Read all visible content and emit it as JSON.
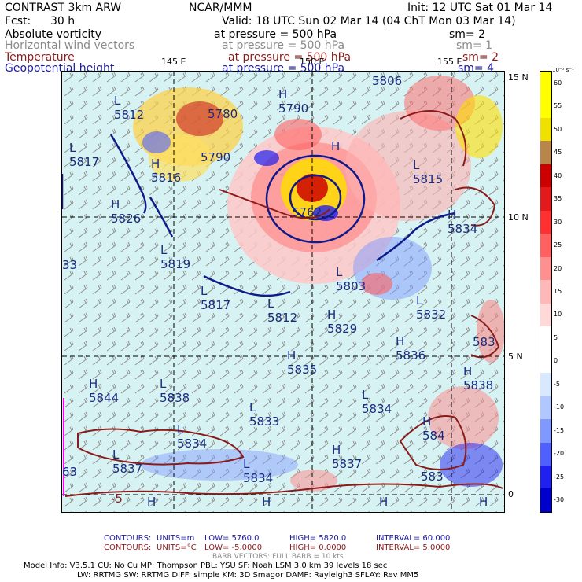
{
  "header": {
    "model": "CONTRAST  3km ARW",
    "center": "NCAR/MMM",
    "init": "Init: 12 UTC Sat 01 Mar 14",
    "fcst_label": "Fcst:",
    "fcst_value": "30 h",
    "valid": "Valid: 18 UTC Sun 02 Mar 14 (04 ChT Mon 03 Mar 14)"
  },
  "fields": [
    {
      "name": "Absolute vorticity",
      "pressure": "at pressure =  500 hPa",
      "sm": "sm= 2",
      "color": "#000000"
    },
    {
      "name": "Horizontal wind vectors",
      "pressure": "at pressure =  500 hPa",
      "sm": "sm= 1",
      "color": "#8a8a8a"
    },
    {
      "name": "Temperature",
      "pressure": "at pressure =  500 hPa",
      "sm": "sm= 2",
      "color": "#8b1a1a"
    },
    {
      "name": "Geopotential height",
      "pressure": "at pressure =  500 hPa",
      "sm": "sm= 4",
      "color": "#1a1aa0"
    }
  ],
  "map": {
    "lon_labels": [
      "145 E",
      "150 E",
      "155 E"
    ],
    "lat_labels": [
      "15 N",
      "10 N",
      "5 N",
      "0"
    ],
    "height_labels": [
      {
        "kind": "L",
        "value": "5812"
      },
      {
        "kind": "",
        "value": "5780"
      },
      {
        "kind": "H",
        "value": "5790"
      },
      {
        "kind": "",
        "value": "5806"
      },
      {
        "kind": "L",
        "value": "5817"
      },
      {
        "kind": "H",
        "value": "5816"
      },
      {
        "kind": "",
        "value": "5790"
      },
      {
        "kind": "H",
        "value": ""
      },
      {
        "kind": "",
        "value": "5762"
      },
      {
        "kind": "L",
        "value": "5815"
      },
      {
        "kind": "H",
        "value": "5826"
      },
      {
        "kind": "H",
        "value": "5834"
      },
      {
        "kind": "L",
        "value": "5819"
      },
      {
        "kind": "",
        "value": "33"
      },
      {
        "kind": "L",
        "value": "5803"
      },
      {
        "kind": "L",
        "value": "5817"
      },
      {
        "kind": "L",
        "value": "5812"
      },
      {
        "kind": "H",
        "value": "5829"
      },
      {
        "kind": "L",
        "value": "5832"
      },
      {
        "kind": "H",
        "value": "5836"
      },
      {
        "kind": "",
        "value": "583"
      },
      {
        "kind": "H",
        "value": "5835"
      },
      {
        "kind": "H",
        "value": "5844"
      },
      {
        "kind": "L",
        "value": "5838"
      },
      {
        "kind": "L",
        "value": "5834"
      },
      {
        "kind": "H",
        "value": "5838"
      },
      {
        "kind": "L",
        "value": "5833"
      },
      {
        "kind": "L",
        "value": "5834"
      },
      {
        "kind": "H",
        "value": "584"
      },
      {
        "kind": "L",
        "value": "5837"
      },
      {
        "kind": "H",
        "value": "5837"
      },
      {
        "kind": "L",
        "value": "5834"
      },
      {
        "kind": "",
        "value": "583"
      },
      {
        "kind": "",
        "value": "63"
      },
      {
        "kind": "",
        "value": "-5"
      },
      {
        "kind": "H",
        "value": ""
      },
      {
        "kind": "H",
        "value": ""
      },
      {
        "kind": "H",
        "value": ""
      },
      {
        "kind": "H",
        "value": ""
      }
    ]
  },
  "colorbar": {
    "unit": "10⁻⁵ s⁻¹",
    "ticks": [
      "60",
      "55",
      "50",
      "45",
      "40",
      "35",
      "30",
      "25",
      "20",
      "15",
      "10",
      "5",
      "0",
      "-5",
      "-10",
      "-15",
      "-20",
      "-25",
      "-30"
    ],
    "colors": [
      "#ffff00",
      "#ffff00",
      "#f0e000",
      "#b8864b",
      "#cc0000",
      "#e31a1c",
      "#ff3030",
      "#ff6060",
      "#ff9090",
      "#ffb8b8",
      "#ffd8d8",
      "#ffffff",
      "#ffffff",
      "#d8e8ff",
      "#b0c8ff",
      "#8099ff",
      "#5060ff",
      "#2020f0",
      "#0000cc"
    ]
  },
  "footer": {
    "contours1": {
      "label": "CONTOURS:",
      "units": "UNITS=m",
      "low": "LOW=  5760.0",
      "high": "HIGH=  5820.0",
      "interval": "INTERVAL=    60.000"
    },
    "contours2": {
      "label": "CONTOURS:",
      "units": "UNITS=°C",
      "low": "LOW=  -5.0000",
      "high": "HIGH=   0.0000",
      "interval": "INTERVAL=    5.0000"
    },
    "barb": "BARB VECTORS:  FULL BARB = 10 kts",
    "model_info": "Model Info: V3.5.1     CU: No Cu     MP: Thompson     PBL: YSU       SF: Noah LSM      3.0 km   39 levels    18 sec",
    "model_info2": "LW: RRTMG    SW: RRTMG   DIFF: simple KM: 3D Smagor DAMP: Rayleigh3   SFLAY: Rev MM5"
  }
}
